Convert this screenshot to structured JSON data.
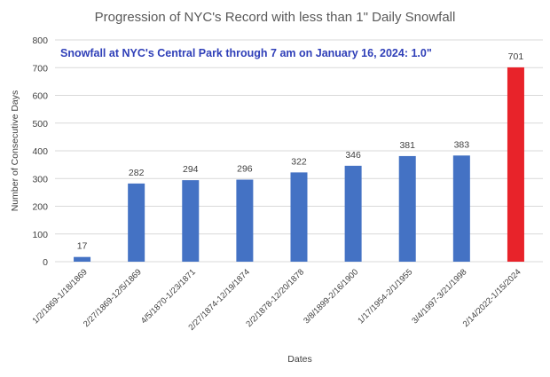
{
  "chart_data": {
    "type": "bar",
    "title": "Progression of NYC's Record with less than 1\" Daily Snowfall",
    "annotation": "Snowfall at NYC's Central Park through 7 am on January 16, 2024: 1.0\"",
    "xlabel": "Dates",
    "ylabel": "Number of Consecutive Days",
    "ylim": [
      0,
      800
    ],
    "yticks": [
      0,
      100,
      200,
      300,
      400,
      500,
      600,
      700,
      800
    ],
    "grid": true,
    "categories": [
      "1/2/1869-1/18/1869",
      "2/27/1869-12/5/1869",
      "4/5/1870-1/23/1871",
      "2/27/1874-12/19/1874",
      "2/2/1878-12/20/1878",
      "3/8/1899-2/16/1900",
      "1/17/1954-2/1/1955",
      "3/4/1997-3/21/1998",
      "2/14/2022-1/15/2024"
    ],
    "values": [
      17,
      282,
      294,
      296,
      322,
      346,
      381,
      383,
      701
    ],
    "data_labels": [
      "17",
      "282",
      "294",
      "296",
      "322",
      "346",
      "381",
      "383",
      "701"
    ],
    "colors": {
      "bar": "#4472c4",
      "highlight": "#e8232a",
      "annotation": "#2f3fb8",
      "grid": "#d9d9d9"
    },
    "highlight_index": 8
  }
}
